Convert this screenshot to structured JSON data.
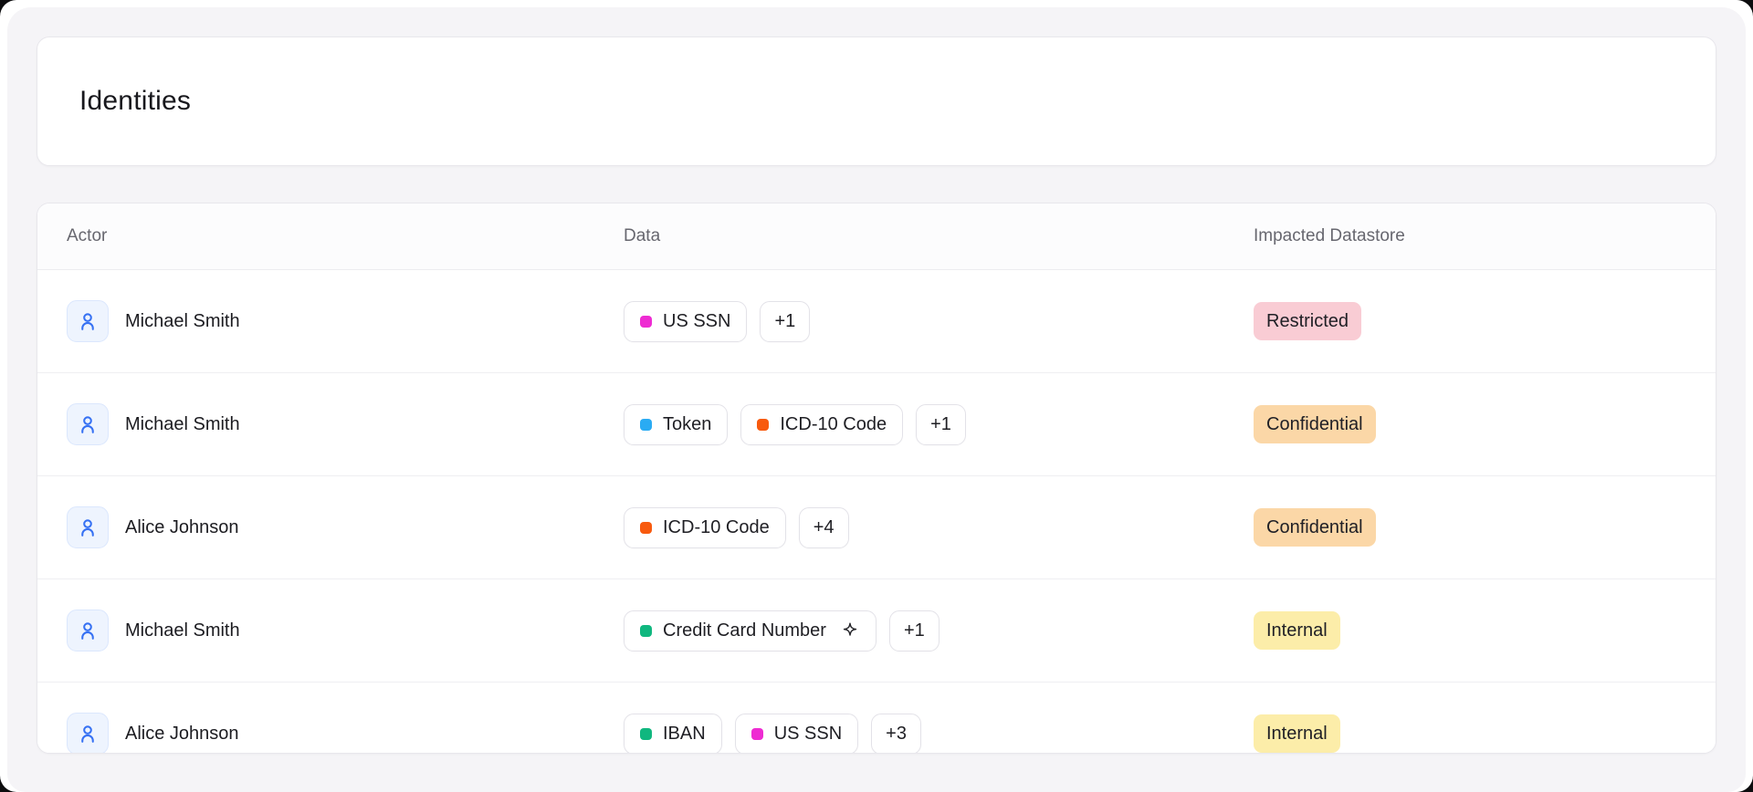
{
  "window": {
    "title_card": {
      "title": "Identities"
    }
  },
  "table": {
    "columns": [
      {
        "label": "Actor"
      },
      {
        "label": "Data"
      },
      {
        "label": "Impacted Datastore"
      }
    ],
    "rows": [
      {
        "actor": "Michael Smith",
        "tags": [
          {
            "label": "US SSN",
            "color": "#ee2bd2",
            "sparkle": false
          }
        ],
        "more": "+1",
        "badge": {
          "label": "Restricted",
          "bg": "#f9ccd4"
        }
      },
      {
        "actor": "Michael Smith",
        "tags": [
          {
            "label": "Token",
            "color": "#2aabf3",
            "sparkle": false
          },
          {
            "label": "ICD-10 Code",
            "color": "#f85a0e",
            "sparkle": false
          }
        ],
        "more": "+1",
        "badge": {
          "label": "Confidential",
          "bg": "#fbd7a7"
        }
      },
      {
        "actor": "Alice Johnson",
        "tags": [
          {
            "label": "ICD-10 Code",
            "color": "#f85a0e",
            "sparkle": false
          }
        ],
        "more": "+4",
        "badge": {
          "label": "Confidential",
          "bg": "#fbd7a7"
        }
      },
      {
        "actor": "Michael Smith",
        "tags": [
          {
            "label": "Credit Card Number",
            "color": "#10b77f",
            "sparkle": true
          }
        ],
        "more": "+1",
        "badge": {
          "label": "Internal",
          "bg": "#fceda9"
        }
      },
      {
        "actor": "Alice Johnson",
        "tags": [
          {
            "label": "IBAN",
            "color": "#10b77f",
            "sparkle": false
          },
          {
            "label": "US SSN",
            "color": "#ee2bd2",
            "sparkle": false
          }
        ],
        "more": "+3",
        "badge": {
          "label": "Internal",
          "bg": "#fceda9"
        }
      }
    ]
  },
  "colors": {
    "panel_bg": "#f5f4f7",
    "card_border": "#e8e7ec",
    "avatar_icon": "#3671f3",
    "tag_pink": "#ee2bd2",
    "tag_blue": "#2aabf3",
    "tag_orange": "#f85a0e",
    "tag_green": "#10b77f",
    "badge_restricted_bg": "#f9ccd4",
    "badge_confidential_bg": "#fbd7a7",
    "badge_internal_bg": "#fceda9"
  }
}
